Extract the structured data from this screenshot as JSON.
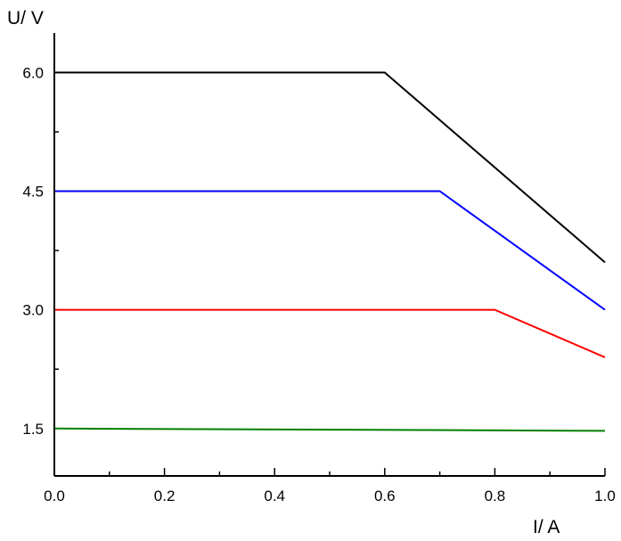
{
  "chart_data": {
    "type": "line",
    "title": "",
    "xlabel": "I/ A",
    "ylabel": "U/ V",
    "xlim": [
      0.0,
      1.0
    ],
    "ylim": [
      0.9,
      6.5
    ],
    "x_ticks": [
      "0.0",
      "0.2",
      "0.4",
      "0.6",
      "0.8",
      "1.0"
    ],
    "y_ticks": [
      "1.5",
      "3.0",
      "4.5",
      "6.0"
    ],
    "x_tick_values": [
      0.0,
      0.2,
      0.4,
      0.6,
      0.8,
      1.0
    ],
    "y_tick_values": [
      1.5,
      3.0,
      4.5,
      6.0
    ],
    "x_minor_ticks": [
      0.1,
      0.3,
      0.5,
      0.7,
      0.9
    ],
    "y_minor_ticks": [
      2.25,
      3.75,
      5.25
    ],
    "grid": false,
    "legend": "none",
    "series": [
      {
        "color": "#000000",
        "x": [
          0.0,
          0.6,
          1.0
        ],
        "y": [
          6.0,
          6.0,
          3.6
        ]
      },
      {
        "color": "#0000ff",
        "x": [
          0.0,
          0.7,
          1.0
        ],
        "y": [
          4.5,
          4.5,
          3.0
        ]
      },
      {
        "color": "#ff0000",
        "x": [
          0.0,
          0.8,
          1.0
        ],
        "y": [
          3.0,
          3.0,
          2.4
        ]
      },
      {
        "color": "#008000",
        "x": [
          0.0,
          1.0
        ],
        "y": [
          1.5,
          1.47
        ]
      }
    ]
  }
}
